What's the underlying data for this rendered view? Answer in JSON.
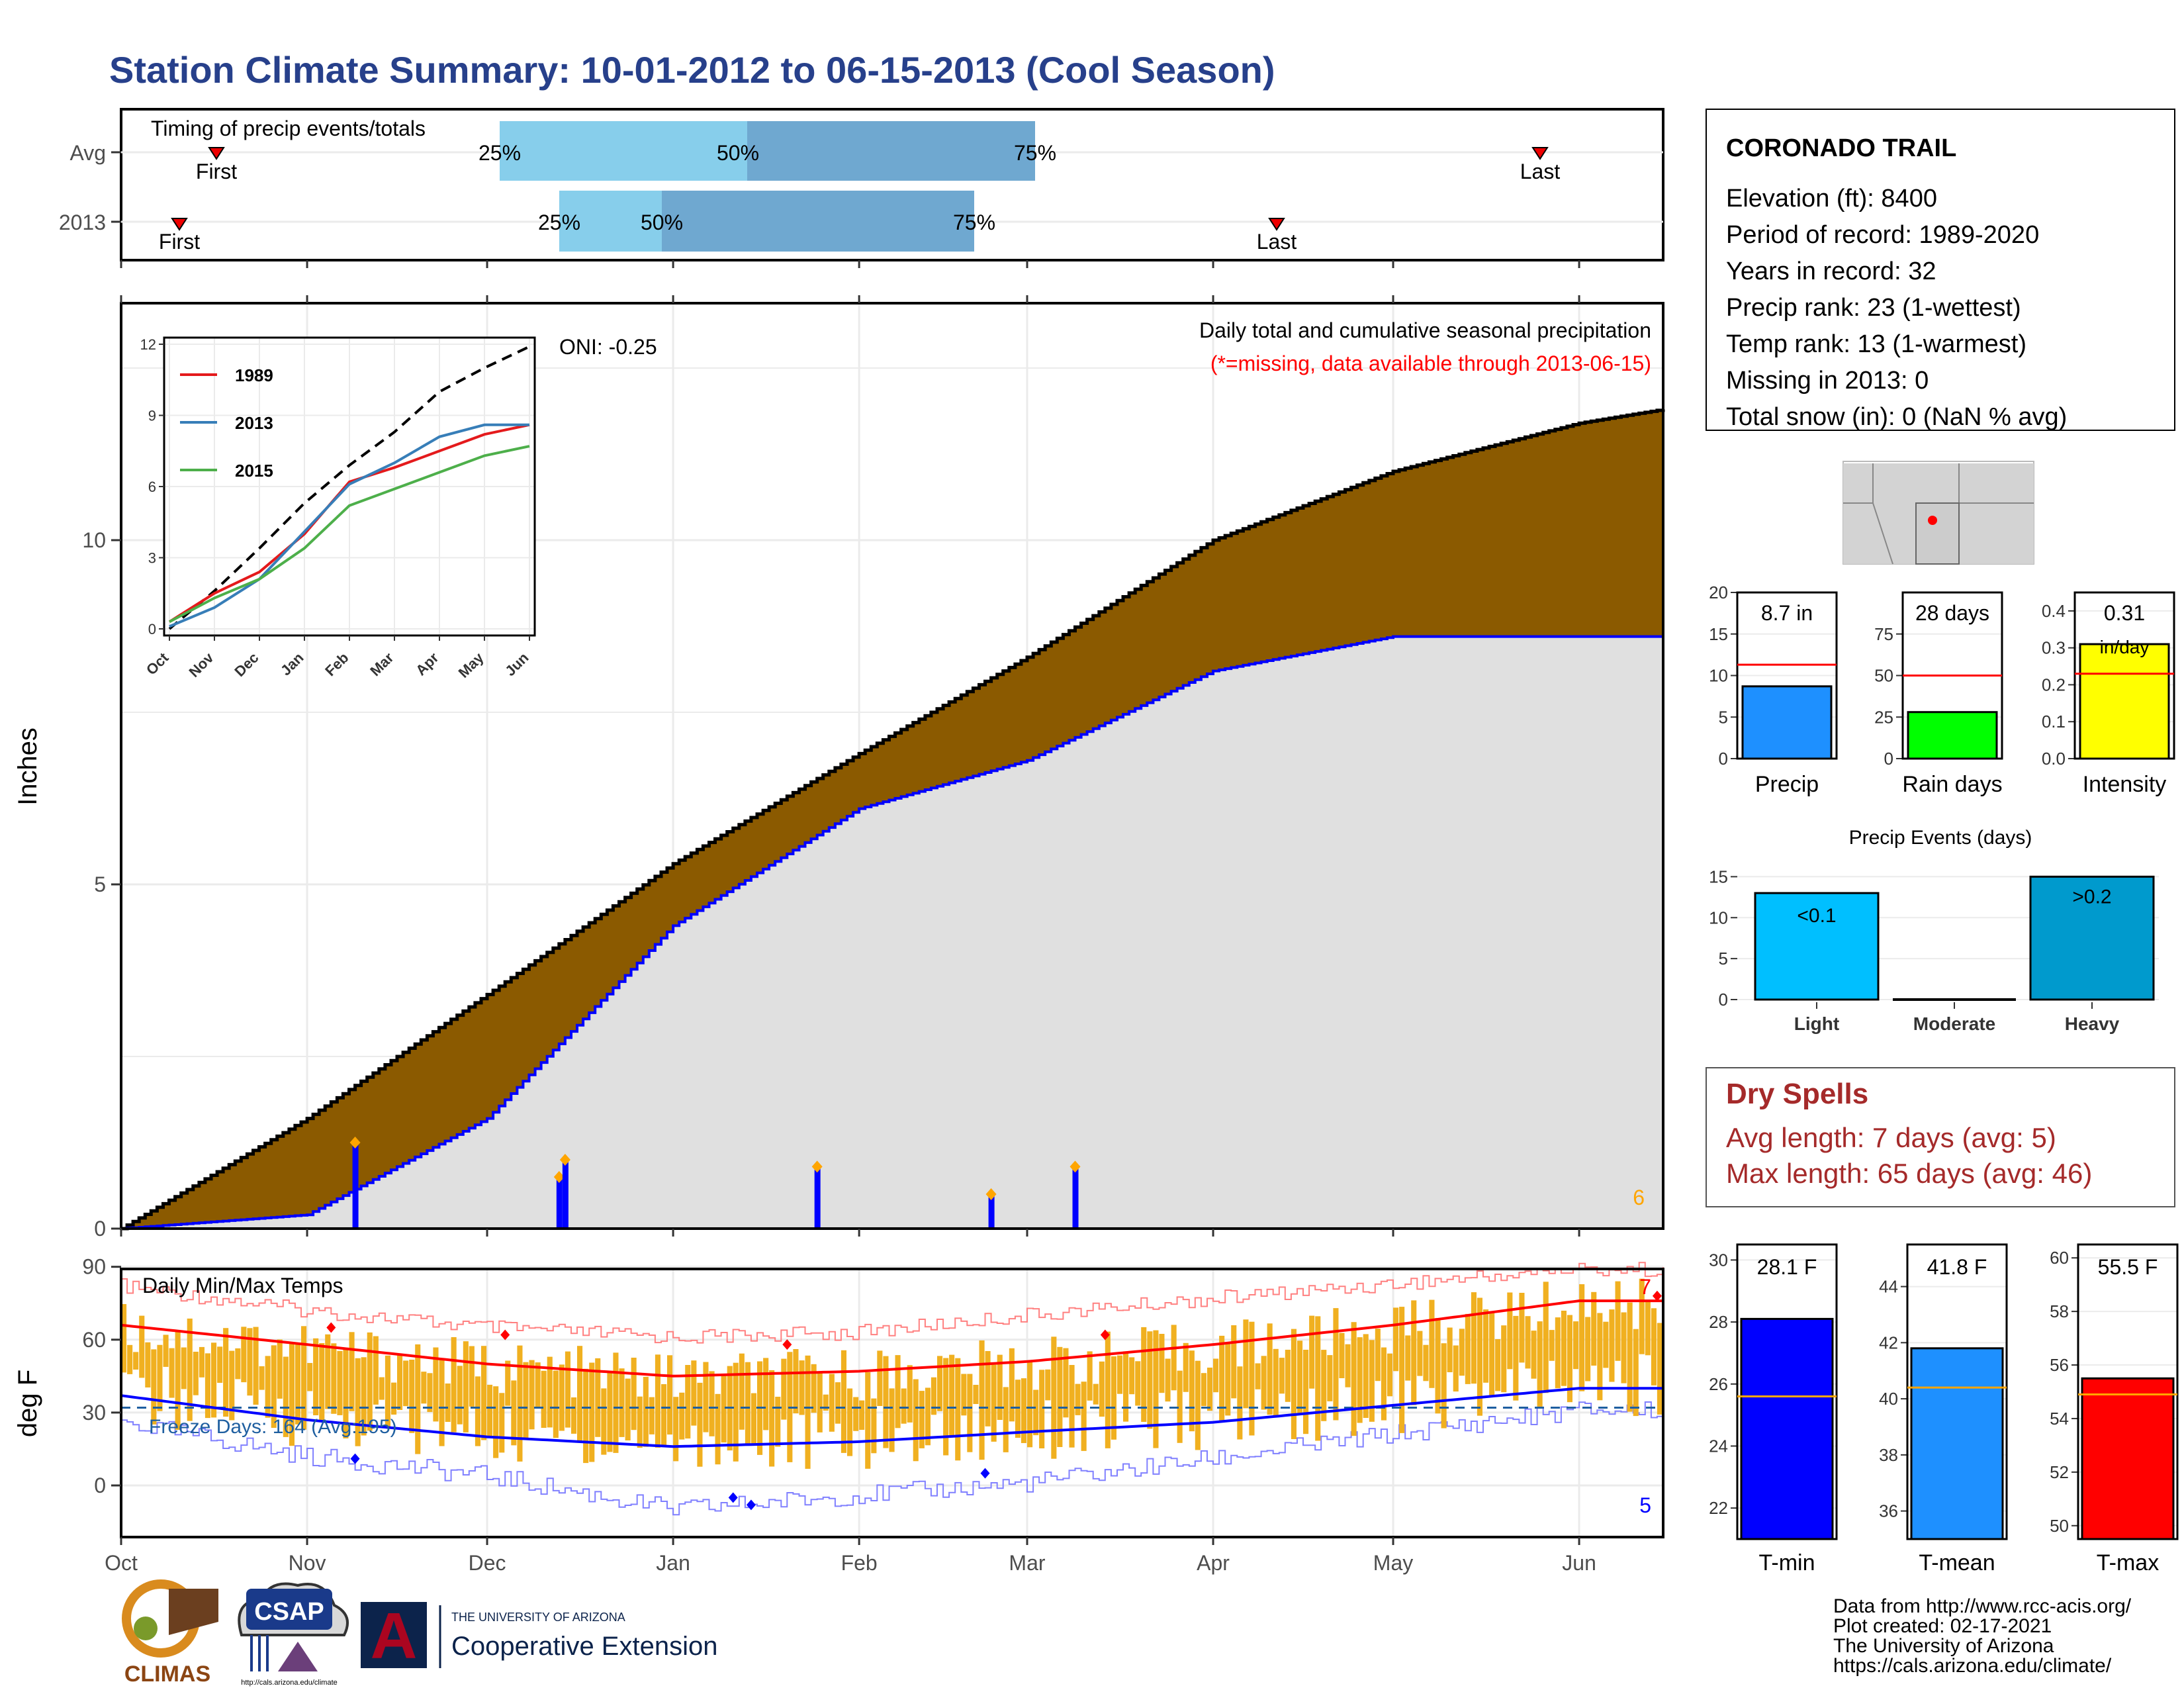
{
  "title": "Station Climate Summary: 10-01-2012 to 06-15-2013 (Cool Season)",
  "colors": {
    "title": "#27408b",
    "q_light": "#87ceeb",
    "q_dark": "#6fa8d0",
    "cum_fill": "#8b5a00",
    "cum_area": "#e0e0e0",
    "avg_line": "#ff0000",
    "obs_blue": "#0000ff",
    "bar_orange": "#f0b020",
    "precip_bar": "#1e90ff",
    "raindays_bar": "#00ff00",
    "intensity_bar": "#ffff00",
    "light_bar": "#00bfff",
    "heavy_bar": "#009acd",
    "dry": "#a52a2a",
    "tmin": "#0000ff",
    "tmean": "#1e90ff",
    "tmax": "#ff0000"
  },
  "timing": {
    "label": "Timing of precip events/totals",
    "avg_label": "Avg",
    "year_label": "2013",
    "first_label": "First",
    "last_label": "Last",
    "p25": "25%",
    "p50": "50%",
    "p75": "75%"
  },
  "main": {
    "ylabel": "Inches",
    "oni": "ONI: -0.25",
    "header": "Daily total and cumulative seasonal precipitation",
    "missing_note": "(*=missing, data available through 2013-06-15)",
    "corner_count": "6",
    "y_ticks": [
      "0",
      "5",
      "10"
    ]
  },
  "inset": {
    "y_ticks": [
      "0",
      "3",
      "6",
      "9",
      "12"
    ],
    "months": [
      "Oct",
      "Nov",
      "Dec",
      "Jan",
      "Feb",
      "Mar",
      "Apr",
      "May",
      "Jun"
    ],
    "legend": [
      "1989",
      "2013",
      "2015"
    ]
  },
  "temps": {
    "label": "Daily Min/Max Temps",
    "ylabel": "deg F",
    "freeze": "Freeze Days: 164 (Avg:195)",
    "top_count": "7",
    "bottom_count": "5",
    "y_ticks": [
      "0",
      "30",
      "60",
      "90"
    ]
  },
  "months": [
    "Oct",
    "Nov",
    "Dec",
    "Jan",
    "Feb",
    "Mar",
    "Apr",
    "May",
    "Jun"
  ],
  "station": {
    "name": "CORONADO TRAIL",
    "lines": [
      "Elevation (ft): 8400",
      "Period of record: 1989-2020",
      "Years in record: 32",
      "Precip rank: 23 (1-wettest)",
      "Temp rank: 13 (1-warmest)",
      "Missing in 2013: 0",
      "Total snow (in): 0 (NaN % avg)"
    ]
  },
  "minibars": {
    "precip": {
      "value_label": "8.7 in",
      "name": "Precip",
      "ticks": [
        "0",
        "5",
        "10",
        "15",
        "20"
      ]
    },
    "raindays": {
      "value_label": "28 days",
      "name": "Rain days",
      "ticks": [
        "0",
        "25",
        "50",
        "75"
      ]
    },
    "intensity": {
      "value_label": "0.31",
      "unit": "in/day",
      "name": "Intensity",
      "ticks": [
        "0.0",
        "0.1",
        "0.2",
        "0.3",
        "0.4"
      ]
    }
  },
  "events": {
    "title": "Precip Events (days)",
    "ticks": [
      "0",
      "5",
      "10",
      "15"
    ],
    "cats": [
      "Light",
      "Moderate",
      "Heavy"
    ],
    "labels": [
      "<0.1",
      ">0.2"
    ]
  },
  "dry": {
    "title": "Dry Spells",
    "avg": "Avg length: 7 days (avg: 5)",
    "max": "Max length: 65 days (avg: 46)"
  },
  "tbars": {
    "tmin": {
      "label": "28.1 F",
      "name": "T-min",
      "ticks": [
        "22",
        "24",
        "26",
        "28",
        "30"
      ]
    },
    "tmean": {
      "label": "41.8 F",
      "name": "T-mean",
      "ticks": [
        "36",
        "38",
        "40",
        "42",
        "44"
      ]
    },
    "tmax": {
      "label": "55.5 F",
      "name": "T-max",
      "ticks": [
        "50",
        "52",
        "54",
        "56",
        "58",
        "60"
      ]
    }
  },
  "credits": [
    "Data from http://www.rcc-acis.org/",
    "Plot created: 02-17-2021",
    "The University of Arizona",
    "https://cals.arizona.edu/climate/"
  ],
  "logos": {
    "climas": "CLIMAS",
    "csap": "CSAP",
    "csap_url": "http://cals.arizona.edu/climate",
    "ua_a": "A",
    "ua_small": "THE UNIVERSITY OF ARIZONA",
    "ua_big": "Cooperative Extension"
  },
  "chart_data": [
    {
      "type": "area",
      "title": "Daily total and cumulative seasonal precipitation",
      "ylabel": "Inches",
      "xlabel": "",
      "ylim": [
        0,
        12.5
      ],
      "dates": [
        "2012-10-01",
        "2012-11-01",
        "2012-12-01",
        "2013-01-01",
        "2013-02-01",
        "2013-03-01",
        "2013-04-01",
        "2013-05-01",
        "2013-06-01",
        "2013-06-15"
      ],
      "series": [
        {
          "name": "Average cumulative",
          "values": [
            0.0,
            1.6,
            3.4,
            5.3,
            6.9,
            8.3,
            10.0,
            11.0,
            11.7,
            11.9
          ]
        },
        {
          "name": "2013 cumulative",
          "values": [
            0.0,
            0.2,
            1.6,
            4.4,
            6.1,
            6.8,
            8.1,
            8.6,
            8.6,
            8.6
          ]
        }
      ],
      "daily_events": [
        {
          "date": "2012-11-09",
          "value": 1.25
        },
        {
          "date": "2012-12-13",
          "value": 0.75
        },
        {
          "date": "2012-12-14",
          "value": 1.0
        },
        {
          "date": "2013-01-25",
          "value": 0.9
        },
        {
          "date": "2013-02-23",
          "value": 0.5
        },
        {
          "date": "2013-03-09",
          "value": 0.9
        }
      ]
    },
    {
      "type": "line",
      "title": "",
      "xlabel": "",
      "ylabel": "",
      "ylim": [
        0,
        12
      ],
      "categories": [
        "Oct",
        "Nov",
        "Dec",
        "Jan",
        "Feb",
        "Mar",
        "Apr",
        "May",
        "Jun"
      ],
      "series": [
        {
          "name": "1989",
          "values": [
            0.3,
            1.5,
            2.4,
            4.0,
            6.2,
            6.8,
            7.5,
            8.2,
            8.6
          ]
        },
        {
          "name": "2013",
          "values": [
            0.1,
            0.9,
            2.1,
            4.1,
            6.1,
            7.0,
            8.1,
            8.6,
            8.6
          ]
        },
        {
          "name": "2015",
          "values": [
            0.3,
            1.3,
            2.1,
            3.4,
            5.2,
            5.9,
            6.6,
            7.3,
            7.7
          ]
        },
        {
          "name": "Average",
          "values": [
            0.0,
            1.6,
            3.4,
            5.3,
            6.9,
            8.3,
            10.0,
            11.0,
            11.9
          ]
        }
      ]
    },
    {
      "type": "line",
      "title": "Daily Min/Max Temps",
      "ylabel": "deg F",
      "ylim": [
        -20,
        95
      ],
      "categories": [
        "Oct",
        "Nov",
        "Dec",
        "Jan",
        "Feb",
        "Mar",
        "Apr",
        "May",
        "Jun"
      ],
      "series": [
        {
          "name": "Avg max",
          "values": [
            66,
            58,
            50,
            45,
            47,
            51,
            58,
            66,
            76
          ]
        },
        {
          "name": "Avg min",
          "values": [
            37,
            27,
            20,
            16,
            18,
            22,
            26,
            33,
            40
          ]
        },
        {
          "name": "Record max",
          "values": [
            85,
            75,
            68,
            64,
            66,
            73,
            80,
            86,
            92
          ]
        },
        {
          "name": "Record min",
          "values": [
            22,
            8,
            0,
            -14,
            -8,
            -3,
            7,
            17,
            27
          ]
        }
      ],
      "freeze_threshold": 32
    },
    {
      "type": "bar",
      "title": "",
      "categories": [
        "Precip",
        "Rain days",
        "Intensity"
      ],
      "values": [
        8.7,
        28,
        0.31
      ],
      "averages": [
        11.3,
        50,
        0.23
      ]
    },
    {
      "type": "bar",
      "title": "Precip Events (days)",
      "categories": [
        "Light",
        "Moderate",
        "Heavy"
      ],
      "values": [
        13,
        0,
        15
      ],
      "ylim": [
        0,
        15
      ]
    },
    {
      "type": "bar",
      "title": "",
      "categories": [
        "T-min",
        "T-mean",
        "T-max"
      ],
      "values": [
        28.1,
        41.8,
        55.5
      ],
      "averages": [
        25.6,
        40.4,
        54.9
      ]
    }
  ]
}
